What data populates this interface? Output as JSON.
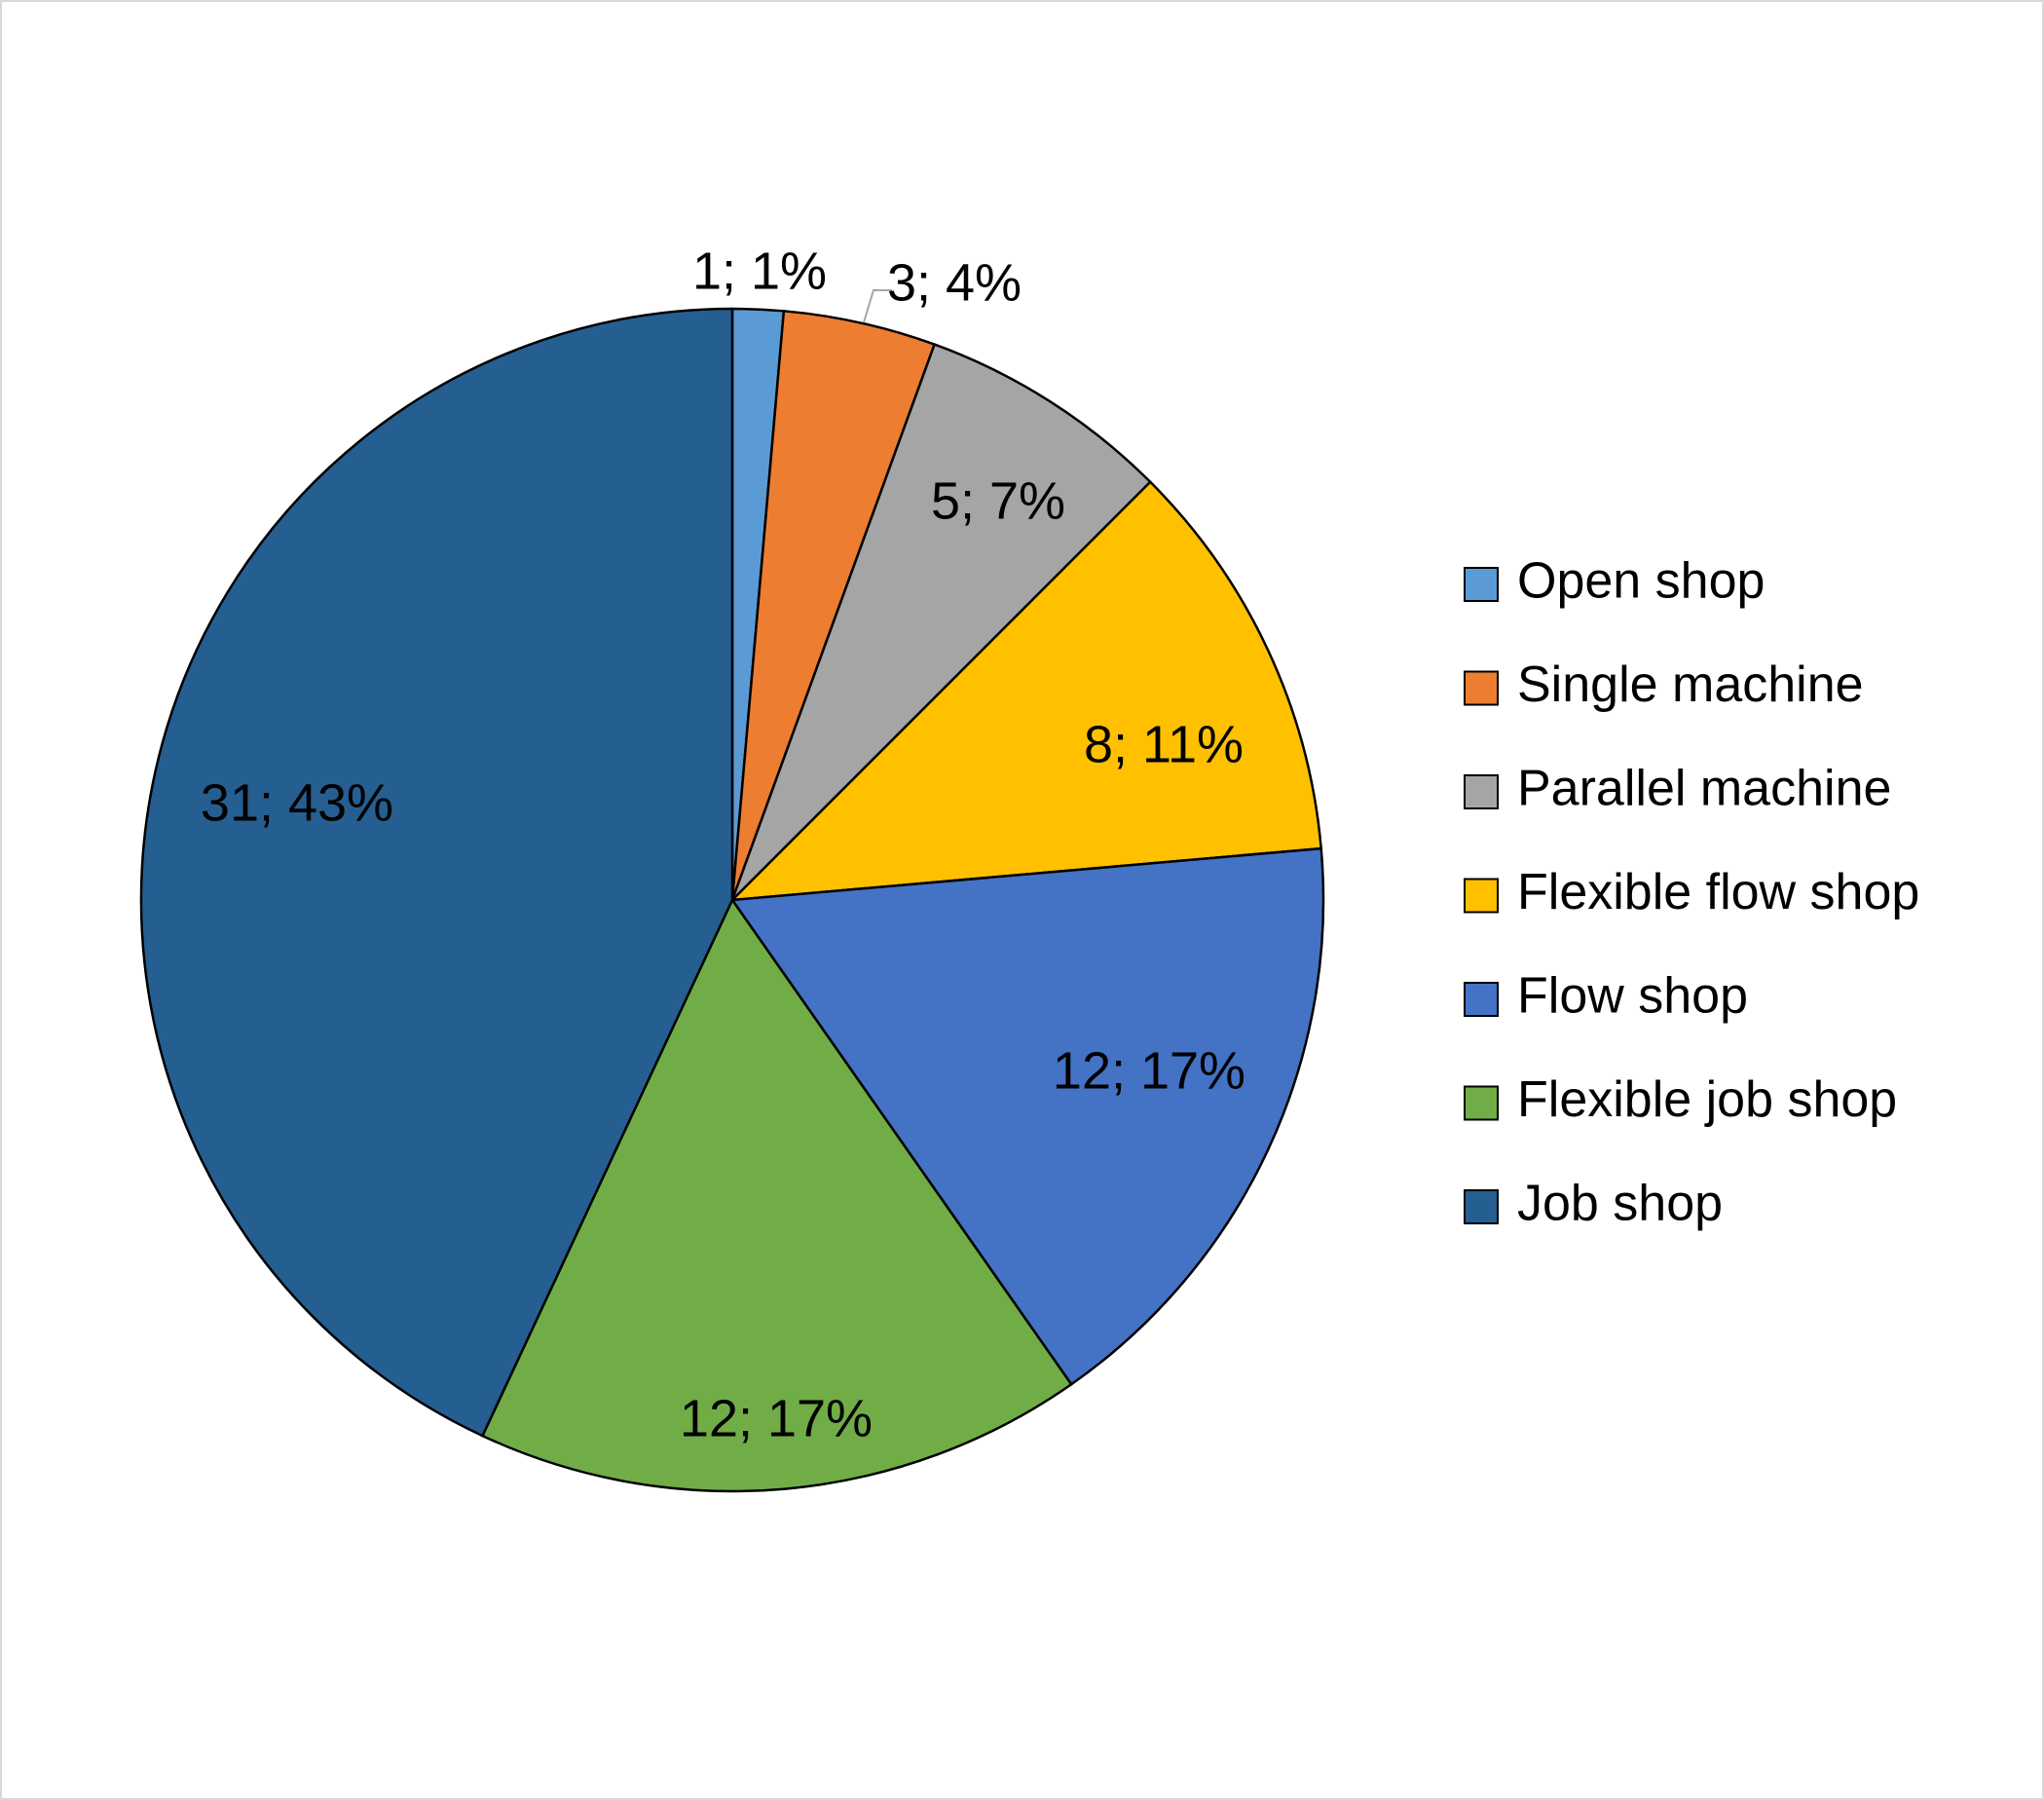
{
  "chart_data": {
    "type": "pie",
    "title": "",
    "slices": [
      {
        "name": "Open shop",
        "value": 1,
        "percent": "1%",
        "label": "1; 1%",
        "color": "#5b9bd5"
      },
      {
        "name": "Single machine",
        "value": 3,
        "percent": "4%",
        "label": "3; 4%",
        "color": "#ed7d31"
      },
      {
        "name": "Parallel machine",
        "value": 5,
        "percent": "7%",
        "label": "5; 7%",
        "color": "#a5a5a5"
      },
      {
        "name": "Flexible flow shop",
        "value": 8,
        "percent": "11%",
        "label": "8; 11%",
        "color": "#ffc000"
      },
      {
        "name": "Flow shop",
        "value": 12,
        "percent": "17%",
        "label": "12; 17%",
        "color": "#4472c4"
      },
      {
        "name": "Flexible job shop",
        "value": 12,
        "percent": "17%",
        "label": "12; 17%",
        "color": "#70ad47"
      },
      {
        "name": "Job shop",
        "value": 31,
        "percent": "43%",
        "label": "31; 43%",
        "color": "#255e91"
      }
    ],
    "start_angle": "12 o'clock",
    "direction": "clockwise",
    "legend": "right"
  }
}
